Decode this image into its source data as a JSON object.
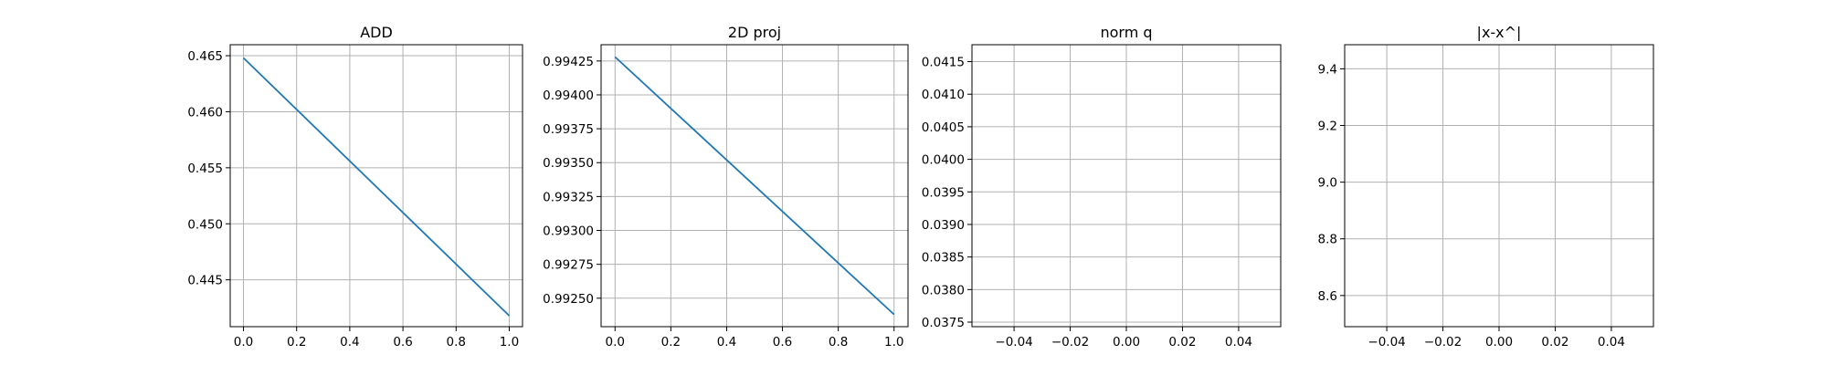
{
  "chart_data": [
    {
      "type": "line",
      "title": "ADD",
      "xlabel": "",
      "ylabel": "",
      "xlim": [
        -0.05,
        1.05
      ],
      "ylim": [
        0.44082,
        0.46598
      ],
      "xticks": [
        0.0,
        0.2,
        0.4,
        0.6,
        0.8,
        1.0
      ],
      "xtick_labels": [
        "0.0",
        "0.2",
        "0.4",
        "0.6",
        "0.8",
        "1.0"
      ],
      "yticks": [
        0.445,
        0.45,
        0.455,
        0.46,
        0.465
      ],
      "ytick_labels": [
        "0.445",
        "0.450",
        "0.455",
        "0.460",
        "0.465"
      ],
      "grid": true,
      "series": [
        {
          "x": [
            0.0,
            1.0
          ],
          "y": [
            0.4648,
            0.4418
          ],
          "color": "#1f77b4"
        }
      ]
    },
    {
      "type": "line",
      "title": "2D proj",
      "xlabel": "",
      "ylabel": "",
      "xlim": [
        -0.05,
        1.05
      ],
      "ylim": [
        0.99229,
        0.99437
      ],
      "xticks": [
        0.0,
        0.2,
        0.4,
        0.6,
        0.8,
        1.0
      ],
      "xtick_labels": [
        "0.0",
        "0.2",
        "0.4",
        "0.6",
        "0.8",
        "1.0"
      ],
      "yticks": [
        0.9925,
        0.99275,
        0.993,
        0.99325,
        0.9935,
        0.99375,
        0.994,
        0.99425
      ],
      "ytick_labels": [
        "0.99250",
        "0.99275",
        "0.99300",
        "0.99325",
        "0.99350",
        "0.99375",
        "0.99400",
        "0.99425"
      ],
      "grid": true,
      "series": [
        {
          "x": [
            0.0,
            1.0
          ],
          "y": [
            0.99428,
            0.99238
          ],
          "color": "#1f77b4"
        }
      ]
    },
    {
      "type": "line",
      "title": "norm q",
      "xlabel": "",
      "ylabel": "",
      "xlim": [
        -0.055,
        0.055
      ],
      "ylim": [
        0.03743,
        0.04176
      ],
      "xticks": [
        -0.04,
        -0.02,
        0.0,
        0.02,
        0.04
      ],
      "xtick_labels": [
        "−0.04",
        "−0.02",
        "0.00",
        "0.02",
        "0.04"
      ],
      "yticks": [
        0.0375,
        0.038,
        0.0385,
        0.039,
        0.0395,
        0.04,
        0.0405,
        0.041,
        0.0415
      ],
      "ytick_labels": [
        "0.0375",
        "0.0380",
        "0.0385",
        "0.0390",
        "0.0395",
        "0.0400",
        "0.0405",
        "0.0410",
        "0.0415"
      ],
      "grid": true,
      "series": []
    },
    {
      "type": "line",
      "title": "|x-x^|",
      "xlabel": "",
      "ylabel": "",
      "xlim": [
        -0.055,
        0.055
      ],
      "ylim": [
        8.49,
        9.485
      ],
      "xticks": [
        -0.04,
        -0.02,
        0.0,
        0.02,
        0.04
      ],
      "xtick_labels": [
        "−0.04",
        "−0.02",
        "0.00",
        "0.02",
        "0.04"
      ],
      "yticks": [
        8.6,
        8.8,
        9.0,
        9.2,
        9.4
      ],
      "ytick_labels": [
        "8.6",
        "8.8",
        "9.0",
        "9.2",
        "9.4"
      ],
      "grid": true,
      "series": []
    }
  ]
}
